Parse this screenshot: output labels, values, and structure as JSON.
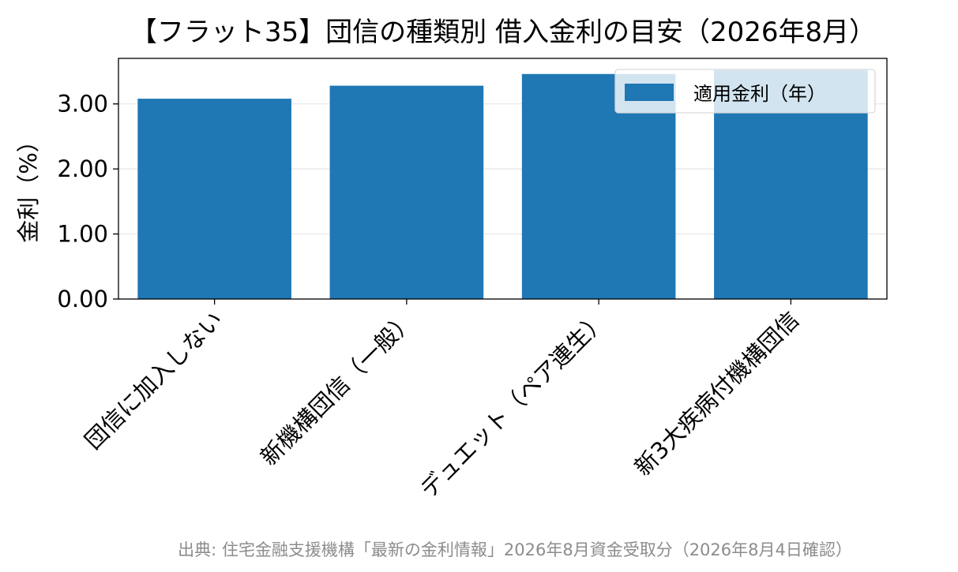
{
  "chart_data": {
    "type": "bar",
    "title": "【フラット35】団信の種類別 借入金利の目安（2026年8月）",
    "categories": [
      "団信に加入しない",
      "新機構団信（一般）",
      "デュエット（ペア連生）",
      "新3大疾病付機構団信"
    ],
    "series": [
      {
        "name": "適用金利（年）",
        "values": [
          3.08,
          3.28,
          3.46,
          3.52
        ],
        "color": "#1f77b4"
      }
    ],
    "xlabel": "",
    "ylabel": "金利（%）",
    "ylim": [
      0,
      3.7
    ],
    "yticks": [
      "0.00",
      "1.00",
      "2.00",
      "3.00"
    ],
    "ytick_values": [
      0,
      1,
      2,
      3
    ],
    "grid": "y",
    "legend": "top-right",
    "source_note": "出典: 住宅金融支援機構「最新の金利情報」2026年8月資金受取分（2026年8月4日確認）"
  }
}
